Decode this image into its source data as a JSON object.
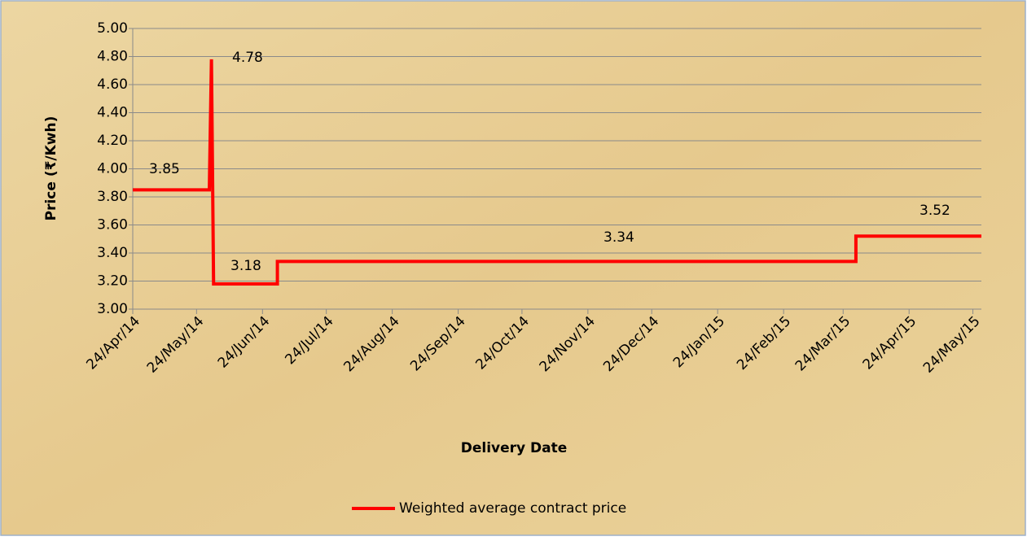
{
  "chart_data": {
    "type": "line",
    "y_label": "Price (₹/Kwh)",
    "x_label": "Delivery Date",
    "x": [
      "2014-04-24",
      "2014-05-30",
      "2014-05-31",
      "2014-06-01",
      "2014-07-01",
      "2014-07-01",
      "2015-03-30",
      "2015-03-30",
      "2015-05-28"
    ],
    "series": [
      {
        "name": "Weighted average contract price",
        "color": "#ff0000",
        "values": [
          3.85,
          3.85,
          4.78,
          3.18,
          3.18,
          3.34,
          3.34,
          3.52,
          3.52
        ]
      }
    ],
    "annotations": [
      "3.85",
      "4.78",
      "3.18",
      "3.34",
      "3.52"
    ],
    "xlim": [
      "2014-04-24",
      "2015-05-28"
    ],
    "xticks": [
      {
        "value": "2014-04-24",
        "label": "24/Apr/14"
      },
      {
        "value": "2014-05-24",
        "label": "24/May/14"
      },
      {
        "value": "2014-06-24",
        "label": "24/Jun/14"
      },
      {
        "value": "2014-07-24",
        "label": "24/Jul/14"
      },
      {
        "value": "2014-08-24",
        "label": "24/Aug/14"
      },
      {
        "value": "2014-09-24",
        "label": "24/Sep/14"
      },
      {
        "value": "2014-10-24",
        "label": "24/Oct/14"
      },
      {
        "value": "2014-11-24",
        "label": "24/Nov/14"
      },
      {
        "value": "2014-12-24",
        "label": "24/Dec/14"
      },
      {
        "value": "2015-01-24",
        "label": "24/Jan/15"
      },
      {
        "value": "2015-02-24",
        "label": "24/Feb/15"
      },
      {
        "value": "2015-03-24",
        "label": "24/Mar/15"
      },
      {
        "value": "2015-04-24",
        "label": "24/Apr/15"
      },
      {
        "value": "2015-05-24",
        "label": "24/May/15"
      }
    ],
    "ylim": [
      3,
      5
    ],
    "yticks": [
      {
        "value": 3,
        "label": "3.00"
      },
      {
        "value": 3.2,
        "label": "3.20"
      },
      {
        "value": 3.4,
        "label": "3.40"
      },
      {
        "value": 3.6,
        "label": "3.60"
      },
      {
        "value": 3.8,
        "label": "3.80"
      },
      {
        "value": 4,
        "label": "4.00"
      },
      {
        "value": 4.2,
        "label": "4.20"
      },
      {
        "value": 4.4,
        "label": "4.40"
      },
      {
        "value": 4.6,
        "label": "4.60"
      },
      {
        "value": 4.8,
        "label": "4.80"
      },
      {
        "value": 5,
        "label": "5.00"
      }
    ],
    "grid": true,
    "legend": "bottom"
  }
}
